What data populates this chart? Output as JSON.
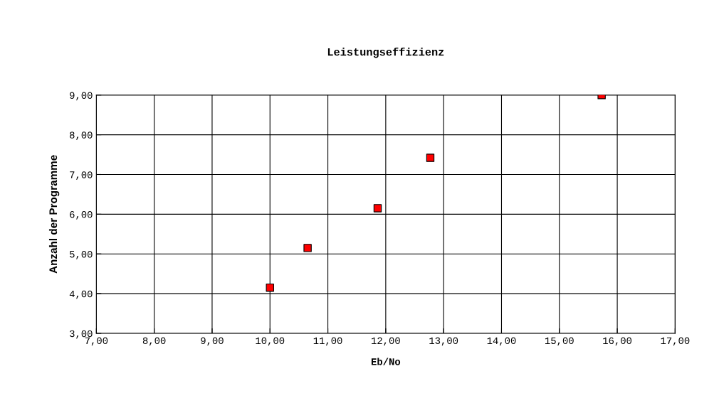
{
  "chart_data": {
    "type": "scatter",
    "title": "Leistungseffizienz",
    "xlabel": "Eb/No",
    "ylabel": "Anzahl der Programme",
    "x": [
      10.0,
      10.65,
      11.86,
      12.77,
      15.73
    ],
    "series": [
      {
        "color": "#ff0000",
        "values": [
          4.15,
          5.15,
          6.15,
          7.42,
          9.0
        ]
      }
    ],
    "marker": "square",
    "grid": true,
    "legend": false,
    "xlim": [
      7,
      17
    ],
    "ylim": [
      3,
      9
    ],
    "xticks": [
      {
        "value": 7,
        "label": "7,00"
      },
      {
        "value": 8,
        "label": "8,00"
      },
      {
        "value": 9,
        "label": "9,00"
      },
      {
        "value": 10,
        "label": "10,00"
      },
      {
        "value": 11,
        "label": "11,00"
      },
      {
        "value": 12,
        "label": "12,00"
      },
      {
        "value": 13,
        "label": "13,00"
      },
      {
        "value": 14,
        "label": "14,00"
      },
      {
        "value": 15,
        "label": "15,00"
      },
      {
        "value": 16,
        "label": "16,00"
      },
      {
        "value": 17,
        "label": "17,00"
      }
    ],
    "yticks": [
      {
        "value": 3,
        "label": "3,00"
      },
      {
        "value": 4,
        "label": "4,00"
      },
      {
        "value": 5,
        "label": "5,00"
      },
      {
        "value": 6,
        "label": "6,00"
      },
      {
        "value": 7,
        "label": "7,00"
      },
      {
        "value": 8,
        "label": "8,00"
      },
      {
        "value": 9,
        "label": "9,00"
      }
    ]
  }
}
